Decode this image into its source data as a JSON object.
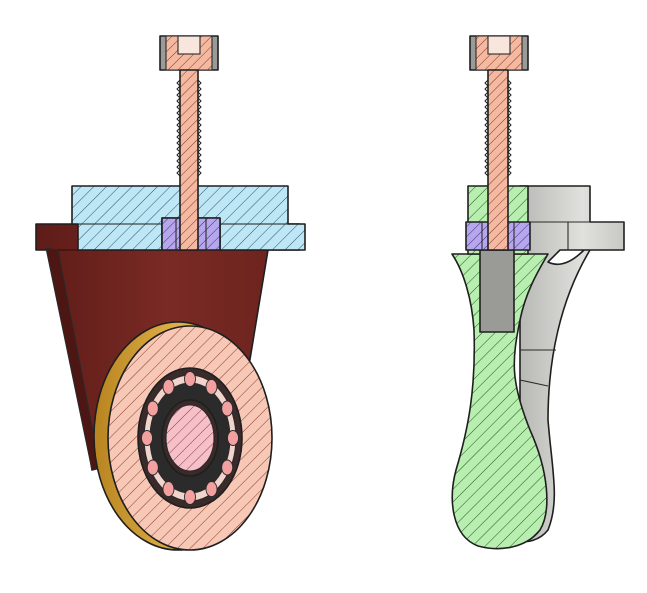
{
  "colors": {
    "background": "#ffffff",
    "bolt_fill": "#f4b9a0",
    "bolt_hatch": "#7a3a24",
    "mount_plate_fill": "#bfe6f4",
    "mount_plate_hatch": "#1b5a73",
    "nut_fill": "#b6a6ec",
    "nut_hatch": "#3d2d8a",
    "bracket_red": "#7a2a24",
    "bracket_red_dark": "#5a1a16",
    "wheel_tread": "#d8a43c",
    "wheel_face": "#f7c8b6",
    "wheel_hatch": "#8a3a2a",
    "bearing_ring": "#2b2b2b",
    "bearing_ball": "#f2a0a0",
    "bearing_inner": "#f6c0c8",
    "arm_green": "#b8eeb0",
    "arm_green_hatch": "#1f5a1a",
    "arm_gray": "#d6d6d2",
    "arm_gray_dark": "#a8a8a4"
  },
  "views": [
    {
      "name": "perspective-section-view"
    },
    {
      "name": "side-section-view"
    }
  ]
}
